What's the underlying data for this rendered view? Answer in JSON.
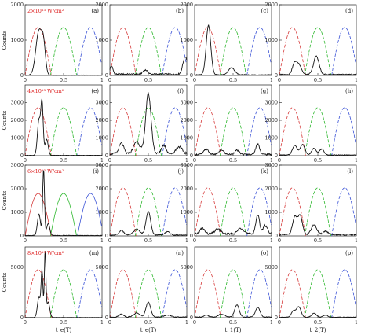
{
  "figure": {
    "ylabel": "Counts",
    "xlabels": [
      "t_e(T)",
      "t_e(T)",
      "t_1(T)",
      "t_2(T)"
    ]
  },
  "colors": {
    "data": "#111111",
    "ref_red": "#d63a3a",
    "ref_green": "#2eb82e",
    "ref_blue": "#3a52d6"
  },
  "chart_data": [
    {
      "row": 0,
      "type": "line",
      "intensity_label": "2×10¹³ W/cm²",
      "ylim": [
        0,
        2000
      ],
      "yticks": [
        0,
        1000,
        2000
      ],
      "panels": [
        {
          "label": "(a)",
          "peaks": [
            [
              0.18,
              1250,
              0.04
            ],
            [
              0.24,
              700,
              0.025
            ]
          ],
          "base": 10
        },
        {
          "label": "(b)",
          "peaks": [
            [
              0.02,
              230,
              0.02
            ],
            [
              0.46,
              120,
              0.03
            ],
            [
              0.98,
              500,
              0.03
            ]
          ],
          "base": 40
        },
        {
          "label": "(c)",
          "peaks": [
            [
              0.18,
              1400,
              0.03
            ],
            [
              0.48,
              200,
              0.04
            ]
          ],
          "base": 20
        },
        {
          "label": "(d)",
          "peaks": [
            [
              0.2,
              330,
              0.03
            ],
            [
              0.26,
              250,
              0.03
            ],
            [
              0.48,
              520,
              0.035
            ]
          ],
          "base": 30
        }
      ]
    },
    {
      "row": 1,
      "type": "line",
      "intensity_label": "4×10¹³ W/cm²",
      "ylim": [
        0,
        4000
      ],
      "yticks": [
        0,
        1000,
        2000,
        3000
      ],
      "panels": [
        {
          "label": "(e)",
          "peaks": [
            [
              0.18,
              2000,
              0.02
            ],
            [
              0.22,
              2900,
              0.015
            ],
            [
              0.28,
              900,
              0.02
            ]
          ],
          "base": 20
        },
        {
          "label": "(f)",
          "peaks": [
            [
              0.15,
              600,
              0.03
            ],
            [
              0.35,
              700,
              0.04
            ],
            [
              0.5,
              3400,
              0.035
            ],
            [
              0.7,
              500,
              0.03
            ],
            [
              0.9,
              400,
              0.04
            ]
          ],
          "base": 120
        },
        {
          "label": "(g)",
          "peaks": [
            [
              0.15,
              300,
              0.03
            ],
            [
              0.35,
              250,
              0.03
            ],
            [
              0.55,
              230,
              0.03
            ],
            [
              0.82,
              600,
              0.025
            ]
          ],
          "base": 80
        },
        {
          "label": "(h)",
          "peaks": [
            [
              0.2,
              550,
              0.03
            ],
            [
              0.3,
              600,
              0.03
            ],
            [
              0.45,
              380,
              0.03
            ],
            [
              0.55,
              330,
              0.03
            ]
          ],
          "base": 40
        }
      ]
    },
    {
      "row": 2,
      "type": "line",
      "intensity_label": "6×10¹³ W/cm²",
      "ylim": [
        0,
        3000
      ],
      "yticks": [
        0,
        1000,
        2000,
        3000
      ],
      "panels": [
        {
          "label": "(i)",
          "peaks": [
            [
              0.18,
              900,
              0.02
            ],
            [
              0.24,
              2800,
              0.012
            ],
            [
              0.3,
              500,
              0.02
            ]
          ],
          "base": 20
        },
        {
          "label": "(j)",
          "peaks": [
            [
              0.15,
              200,
              0.03
            ],
            [
              0.35,
              250,
              0.04
            ],
            [
              0.5,
              1000,
              0.03
            ],
            [
              0.75,
              150,
              0.03
            ]
          ],
          "base": 40
        },
        {
          "label": "(k)",
          "peaks": [
            [
              0.1,
              250,
              0.03
            ],
            [
              0.3,
              200,
              0.04
            ],
            [
              0.6,
              250,
              0.04
            ],
            [
              0.82,
              800,
              0.025
            ],
            [
              0.92,
              350,
              0.03
            ]
          ],
          "base": 90
        },
        {
          "label": "(l)",
          "peaks": [
            [
              0.2,
              720,
              0.03
            ],
            [
              0.27,
              770,
              0.03
            ],
            [
              0.45,
              420,
              0.035
            ],
            [
              0.6,
              150,
              0.03
            ]
          ],
          "base": 60
        }
      ]
    },
    {
      "row": 3,
      "type": "line",
      "intensity_label": "8×10¹³ W/cm²",
      "ylim": [
        0,
        7000
      ],
      "yticks": [
        0,
        5000
      ],
      "panels": [
        {
          "label": "(m)",
          "peaks": [
            [
              0.18,
              2000,
              0.02
            ],
            [
              0.22,
              4500,
              0.012
            ],
            [
              0.26,
              6500,
              0.01
            ],
            [
              0.3,
              1500,
              0.02
            ]
          ],
          "base": 20
        },
        {
          "label": "(n)",
          "peaks": [
            [
              0.15,
              300,
              0.03
            ],
            [
              0.35,
              400,
              0.04
            ],
            [
              0.5,
              1500,
              0.03
            ],
            [
              0.75,
              200,
              0.04
            ]
          ],
          "base": 70
        },
        {
          "label": "(o)",
          "peaks": [
            [
              0.15,
              200,
              0.03
            ],
            [
              0.35,
              300,
              0.04
            ],
            [
              0.55,
              1200,
              0.03
            ],
            [
              0.82,
              950,
              0.03
            ]
          ],
          "base": 70
        },
        {
          "label": "(p)",
          "peaks": [
            [
              0.18,
              600,
              0.025
            ],
            [
              0.25,
              1050,
              0.03
            ],
            [
              0.45,
              400,
              0.03
            ],
            [
              0.6,
              200,
              0.03
            ]
          ],
          "base": 50
        }
      ]
    }
  ],
  "reference_curves": [
    {
      "color_key": "ref_red",
      "center": 0.17,
      "dash": true
    },
    {
      "color_key": "ref_green",
      "center": 0.5,
      "dash": true
    },
    {
      "color_key": "ref_blue",
      "center": 0.85,
      "dash": true
    }
  ],
  "xticks": [
    0,
    0.5,
    1
  ]
}
